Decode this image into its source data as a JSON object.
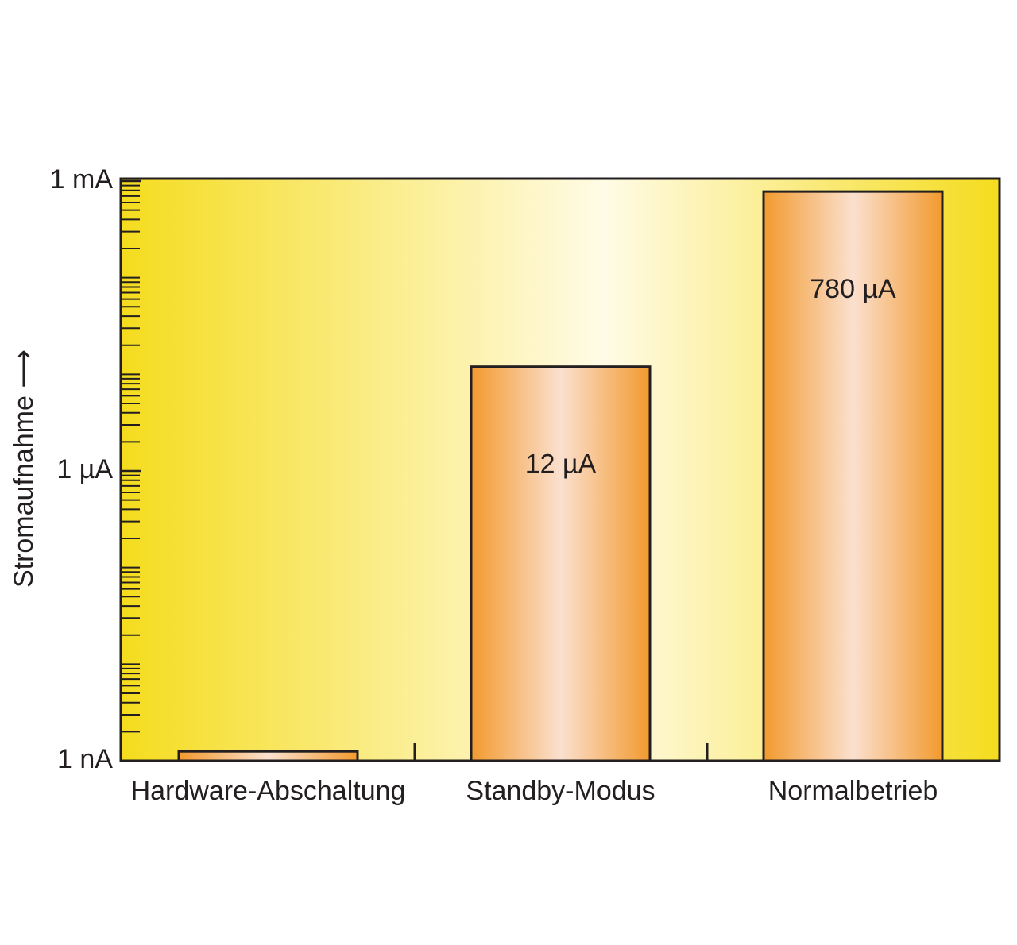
{
  "chart_data": {
    "type": "bar",
    "y_label": "Stromaufnahme ⟶",
    "categories": [
      "Hardware-Abschaltung",
      "Standby-Modus",
      "Normalbetrieb"
    ],
    "values": [
      0.00125,
      12,
      780
    ],
    "value_labels": [
      null,
      "12 µA",
      "780 µA"
    ],
    "log_scale": true,
    "ylim": [
      0.001,
      1000
    ],
    "yticks": [
      {
        "value": 0.001,
        "label": "1 nA"
      },
      {
        "value": 1,
        "label": "1 µA"
      },
      {
        "value": 1000,
        "label": "1 mA"
      }
    ],
    "yticks_minor": [
      0.002,
      0.003,
      0.004,
      0.005,
      0.006,
      0.007,
      0.008,
      0.009,
      0.01,
      0.02,
      0.03,
      0.04,
      0.05,
      0.06,
      0.07,
      0.08,
      0.09,
      0.1,
      0.2,
      0.3,
      0.4,
      0.5,
      0.6,
      0.7,
      0.8,
      0.9,
      2,
      3,
      4,
      5,
      6,
      7,
      8,
      9,
      10,
      20,
      30,
      40,
      50,
      60,
      70,
      80,
      90,
      100,
      200,
      300,
      400,
      500,
      600,
      700,
      800,
      900
    ],
    "color": "#f29a2e"
  }
}
